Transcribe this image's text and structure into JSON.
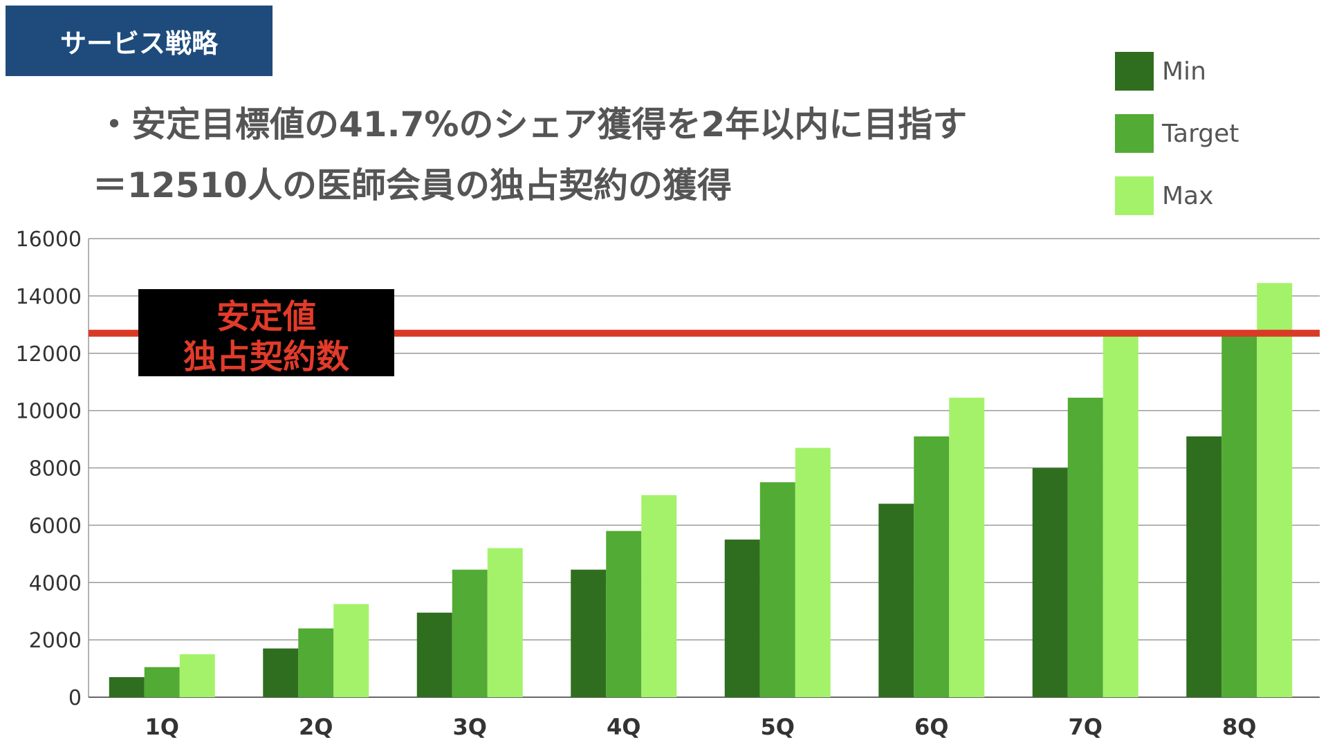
{
  "header": {
    "title": "サービス戦略",
    "bullet": "・安定目標値の41.7%のシェア獲得を2年以内に目指す",
    "subline": "＝12510人の医師会員の独占契約の獲得"
  },
  "colors": {
    "header_bg": "#1e4b7c",
    "reference_line": "#d93a26",
    "annotation_bg": "#000000",
    "annotation_text": "#e23b2a"
  },
  "chart_data": {
    "type": "bar",
    "categories": [
      "1Q",
      "2Q",
      "3Q",
      "4Q",
      "5Q",
      "6Q",
      "7Q",
      "8Q"
    ],
    "series": [
      {
        "name": "Min",
        "color": "#2f6e1f",
        "values": [
          700,
          1700,
          2950,
          4450,
          5500,
          6750,
          8000,
          9100
        ]
      },
      {
        "name": "Target",
        "color": "#52ab34",
        "values": [
          1050,
          2400,
          4450,
          5800,
          7500,
          9100,
          10450,
          12700
        ]
      },
      {
        "name": "Max",
        "color": "#a4f26a",
        "values": [
          1500,
          3250,
          5200,
          7050,
          8700,
          10450,
          12700,
          14450
        ]
      }
    ],
    "ylim": [
      0,
      16000
    ],
    "yticks": [
      0,
      2000,
      4000,
      6000,
      8000,
      10000,
      12000,
      14000,
      16000
    ],
    "grid": true,
    "legend": "top-right",
    "reference_line": {
      "value": 12700,
      "label_line1": "安定値",
      "label_line2": "独占契約数"
    }
  }
}
